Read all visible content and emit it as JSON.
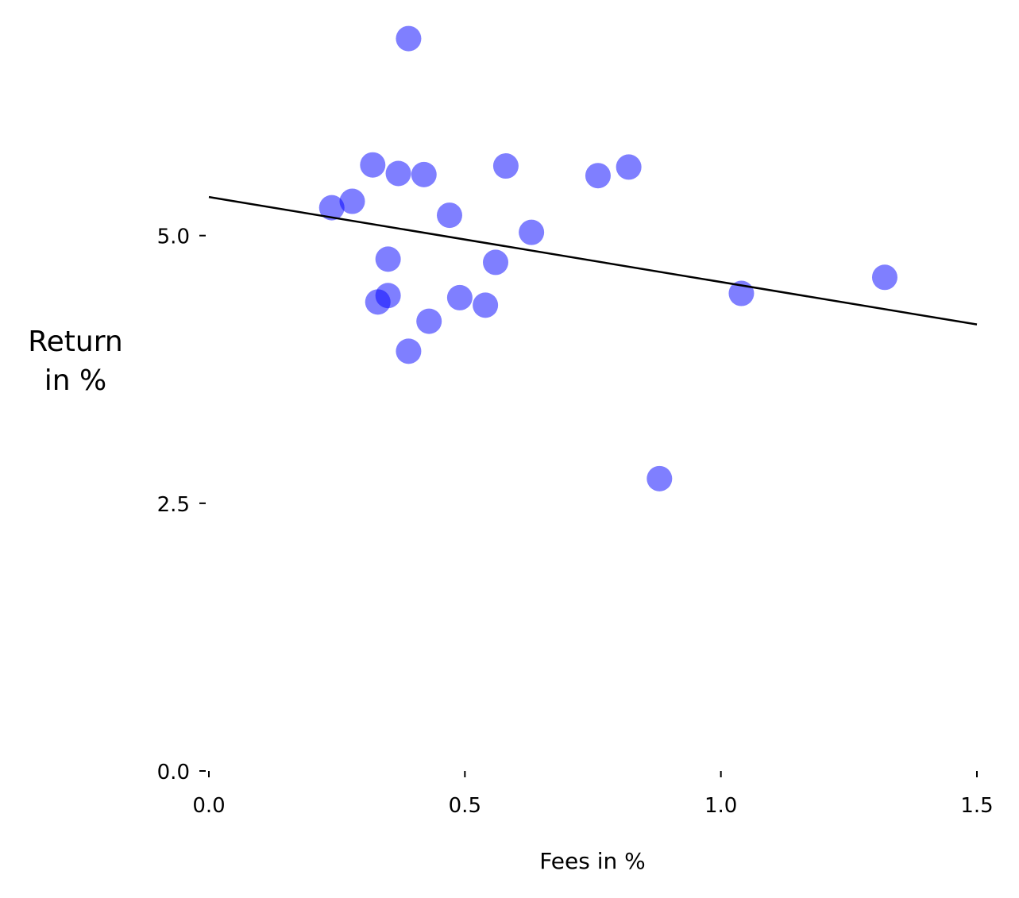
{
  "chart_data": {
    "type": "scatter",
    "title": "",
    "xlabel": "Fees in %",
    "ylabel_lines": [
      "Return",
      "in %"
    ],
    "xlim": [
      0.0,
      1.5
    ],
    "ylim": [
      0.0,
      7.0
    ],
    "x_ticks": [
      0.0,
      0.5,
      1.0,
      1.5
    ],
    "x_tick_labels": [
      "0.0",
      "0.5",
      "1.0",
      "1.5"
    ],
    "y_ticks": [
      0.0,
      2.5,
      5.0
    ],
    "y_tick_labels": [
      "0.0",
      "2.5",
      "5.0"
    ],
    "grid": false,
    "point_color": "#0000ff",
    "point_opacity": 0.5,
    "line_color": "#000000",
    "points": [
      {
        "x": 0.39,
        "y": 6.84
      },
      {
        "x": 0.32,
        "y": 5.66
      },
      {
        "x": 0.37,
        "y": 5.58
      },
      {
        "x": 0.42,
        "y": 5.57
      },
      {
        "x": 0.58,
        "y": 5.65
      },
      {
        "x": 0.76,
        "y": 5.56
      },
      {
        "x": 0.82,
        "y": 5.64
      },
      {
        "x": 0.24,
        "y": 5.26
      },
      {
        "x": 0.28,
        "y": 5.32
      },
      {
        "x": 0.47,
        "y": 5.19
      },
      {
        "x": 0.63,
        "y": 5.03
      },
      {
        "x": 0.35,
        "y": 4.78
      },
      {
        "x": 0.56,
        "y": 4.75
      },
      {
        "x": 1.32,
        "y": 4.61
      },
      {
        "x": 1.04,
        "y": 4.46
      },
      {
        "x": 0.35,
        "y": 4.44
      },
      {
        "x": 0.33,
        "y": 4.38
      },
      {
        "x": 0.49,
        "y": 4.42
      },
      {
        "x": 0.54,
        "y": 4.35
      },
      {
        "x": 0.43,
        "y": 4.2
      },
      {
        "x": 0.39,
        "y": 3.92
      },
      {
        "x": 0.88,
        "y": 2.73
      }
    ],
    "trend_line": {
      "x": [
        0.0,
        1.5
      ],
      "y": [
        5.36,
        4.17
      ]
    }
  }
}
